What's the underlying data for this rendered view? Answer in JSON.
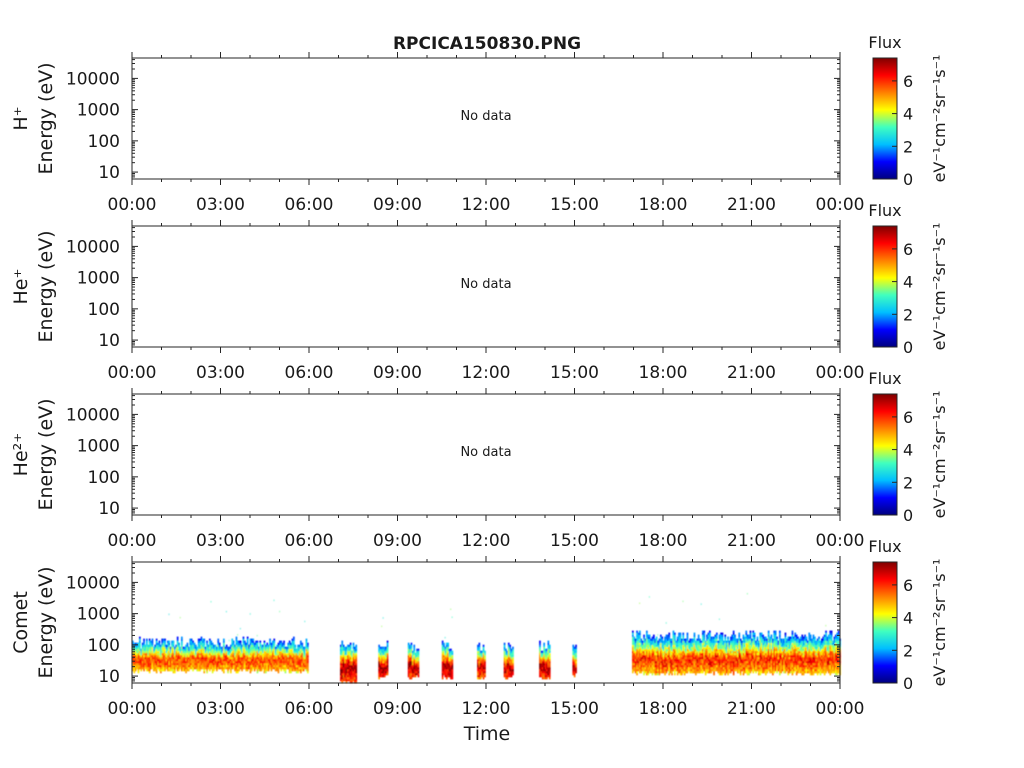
{
  "title": "RPCICA150830.PNG",
  "x_label": "Time",
  "colorbar": {
    "title": "Flux",
    "unit_label": "eV⁻¹cm⁻²sr⁻¹s⁻¹",
    "ticks": [
      "0",
      "2",
      "4",
      "6"
    ],
    "range": [
      0,
      7.4
    ],
    "colormap": [
      "#00007f",
      "#0000ff",
      "#00bfff",
      "#40ffbf",
      "#ffff00",
      "#ff8000",
      "#ff0000",
      "#7f0000"
    ]
  },
  "no_data_text": "No data",
  "chart_data": [
    {
      "type": "heatmap",
      "species": "H⁺",
      "ylabel": "Energy (eV)",
      "yscale": "log",
      "ylim": [
        6,
        45000
      ],
      "yticks": [
        "10",
        "100",
        "1000",
        "10000"
      ],
      "x_ticks": [
        "00:00",
        "03:00",
        "06:00",
        "09:00",
        "12:00",
        "15:00",
        "18:00",
        "21:00",
        "00:00"
      ],
      "xlim_hours": [
        0,
        24
      ],
      "has_data": false
    },
    {
      "type": "heatmap",
      "species": "He⁺",
      "ylabel": "Energy (eV)",
      "yscale": "log",
      "ylim": [
        6,
        45000
      ],
      "yticks": [
        "10",
        "100",
        "1000",
        "10000"
      ],
      "x_ticks": [
        "00:00",
        "03:00",
        "06:00",
        "09:00",
        "12:00",
        "15:00",
        "18:00",
        "21:00",
        "00:00"
      ],
      "xlim_hours": [
        0,
        24
      ],
      "has_data": false
    },
    {
      "type": "heatmap",
      "species": "He²⁺",
      "ylabel": "Energy (eV)",
      "yscale": "log",
      "ylim": [
        6,
        45000
      ],
      "yticks": [
        "10",
        "100",
        "1000",
        "10000"
      ],
      "x_ticks": [
        "00:00",
        "03:00",
        "06:00",
        "09:00",
        "12:00",
        "15:00",
        "18:00",
        "21:00",
        "00:00"
      ],
      "xlim_hours": [
        0,
        24
      ],
      "has_data": false
    },
    {
      "type": "heatmap",
      "species": "Comet",
      "ylabel": "Energy (eV)",
      "yscale": "log",
      "ylim": [
        6,
        45000
      ],
      "yticks": [
        "10",
        "100",
        "1000",
        "10000"
      ],
      "x_ticks": [
        "00:00",
        "03:00",
        "06:00",
        "09:00",
        "12:00",
        "15:00",
        "18:00",
        "21:00",
        "00:00"
      ],
      "xlim_hours": [
        0,
        24
      ],
      "has_data": true,
      "segments": [
        {
          "start_h": 0.0,
          "end_h": 5.95,
          "e_low": 15,
          "e_peak": 35,
          "e_high": 120,
          "peak_flux": 6.0
        },
        {
          "start_h": 7.05,
          "end_h": 7.6,
          "e_low": 6,
          "e_peak": 20,
          "e_high": 100,
          "peak_flux": 7.3
        },
        {
          "start_h": 8.35,
          "end_h": 8.65,
          "e_low": 9,
          "e_peak": 20,
          "e_high": 90,
          "peak_flux": 7.2
        },
        {
          "start_h": 9.35,
          "end_h": 9.7,
          "e_low": 9,
          "e_peak": 20,
          "e_high": 90,
          "peak_flux": 7.2
        },
        {
          "start_h": 10.5,
          "end_h": 10.85,
          "e_low": 9,
          "e_peak": 20,
          "e_high": 90,
          "peak_flux": 7.2
        },
        {
          "start_h": 11.7,
          "end_h": 11.95,
          "e_low": 9,
          "e_peak": 20,
          "e_high": 90,
          "peak_flux": 7.0
        },
        {
          "start_h": 12.6,
          "end_h": 12.9,
          "e_low": 9,
          "e_peak": 20,
          "e_high": 90,
          "peak_flux": 7.0
        },
        {
          "start_h": 13.8,
          "end_h": 14.15,
          "e_low": 9,
          "e_peak": 20,
          "e_high": 90,
          "peak_flux": 7.2
        },
        {
          "start_h": 14.93,
          "end_h": 15.03,
          "e_low": 10,
          "e_peak": 20,
          "e_high": 70,
          "peak_flux": 6.8
        },
        {
          "start_h": 16.95,
          "end_h": 24.0,
          "e_low": 12,
          "e_peak": 35,
          "e_high": 200,
          "peak_flux": 6.3
        }
      ]
    }
  ]
}
